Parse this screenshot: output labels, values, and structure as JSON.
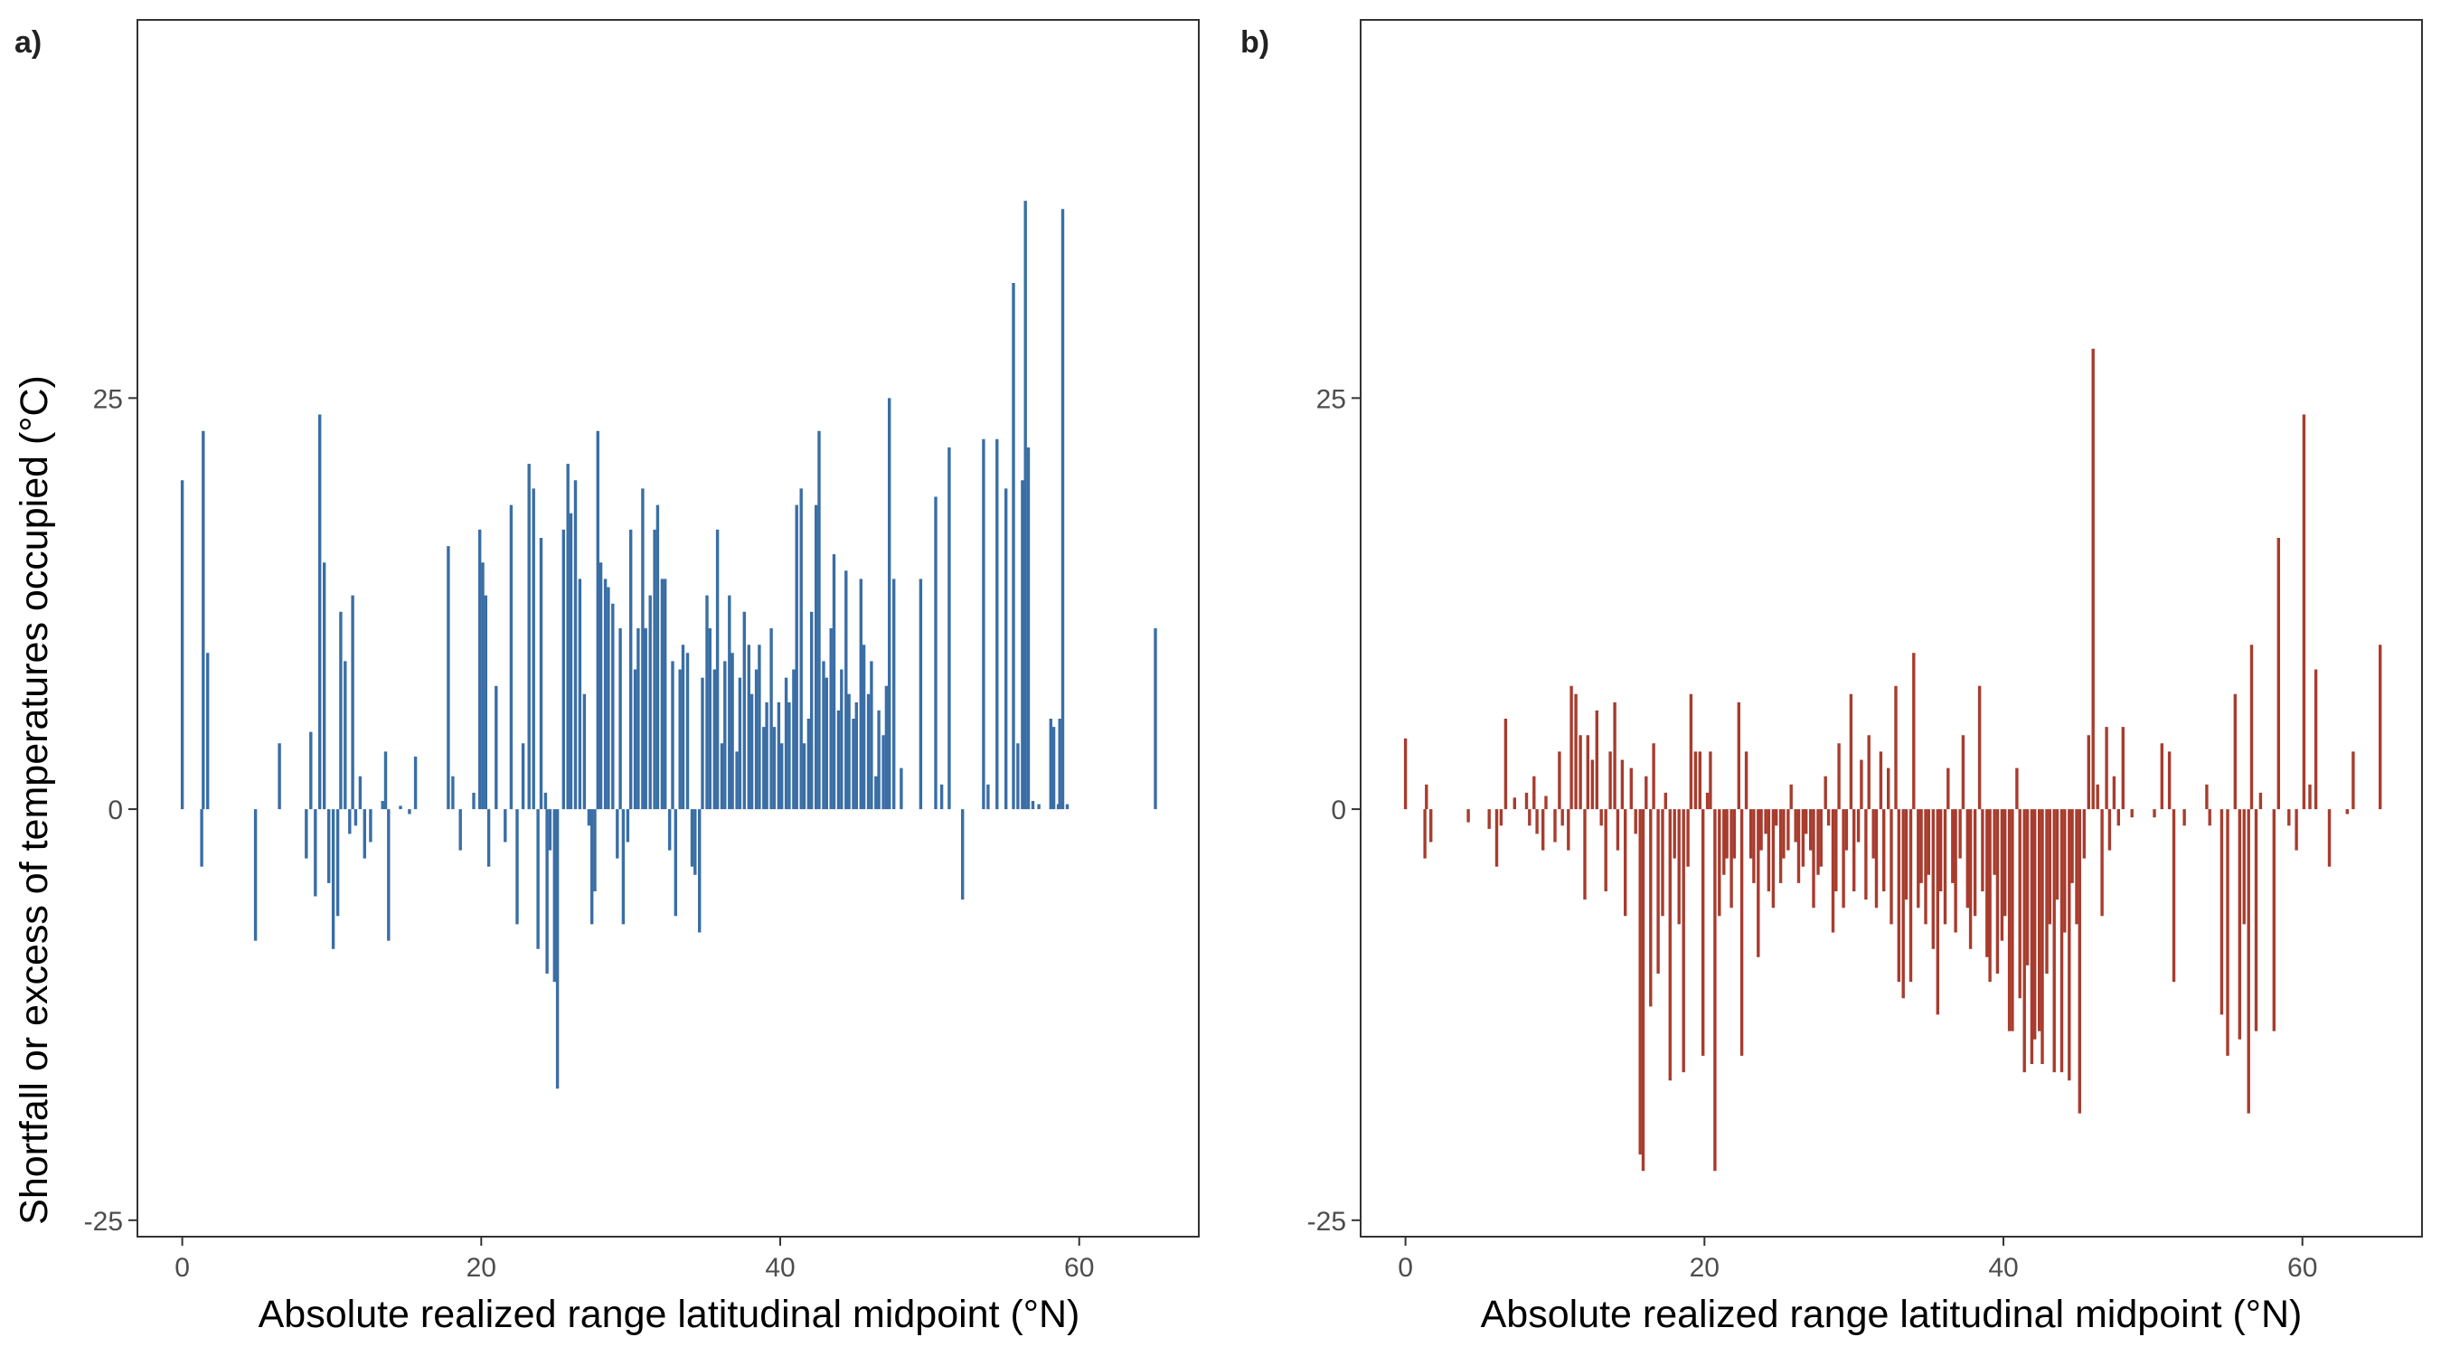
{
  "chart_data": [
    {
      "type": "bar",
      "panel_label": "a)",
      "xlabel": "Absolute realized range latitudinal midpoint (°N)",
      "ylabel": "Shortfall or excess of temperatures occupied (°C)",
      "xlim": [
        -3,
        68
      ],
      "ylim": [
        -26,
        48
      ],
      "xticks": [
        0,
        20,
        40,
        60
      ],
      "yticks": [
        -25,
        0,
        25
      ],
      "color": "#3a6ea5",
      "grid": false,
      "points": [
        [
          0.0,
          20.0
        ],
        [
          1.3,
          -3.5
        ],
        [
          1.4,
          23.0
        ],
        [
          1.7,
          9.5
        ],
        [
          4.9,
          -8.0
        ],
        [
          6.5,
          4.0
        ],
        [
          8.3,
          -3.0
        ],
        [
          8.6,
          4.7
        ],
        [
          8.9,
          -5.3
        ],
        [
          9.2,
          24.0
        ],
        [
          9.5,
          15.0
        ],
        [
          9.8,
          -4.5
        ],
        [
          10.1,
          -8.5
        ],
        [
          10.4,
          -6.5
        ],
        [
          10.6,
          12.0
        ],
        [
          10.9,
          9.0
        ],
        [
          11.2,
          -1.5
        ],
        [
          11.4,
          13.0
        ],
        [
          11.6,
          -1.0
        ],
        [
          11.9,
          2.0
        ],
        [
          12.2,
          -3.0
        ],
        [
          12.6,
          -2.0
        ],
        [
          13.4,
          0.5
        ],
        [
          13.6,
          3.5
        ],
        [
          13.8,
          -8.0
        ],
        [
          14.6,
          0.2
        ],
        [
          15.2,
          -0.3
        ],
        [
          15.6,
          3.2
        ],
        [
          17.8,
          16.0
        ],
        [
          18.1,
          2.0
        ],
        [
          18.6,
          -2.5
        ],
        [
          19.5,
          1.0
        ],
        [
          19.9,
          17.0
        ],
        [
          20.1,
          15.0
        ],
        [
          20.3,
          13.0
        ],
        [
          20.5,
          -3.5
        ],
        [
          21.0,
          7.5
        ],
        [
          21.6,
          -2.0
        ],
        [
          22.0,
          18.5
        ],
        [
          22.4,
          -7.0
        ],
        [
          22.8,
          4.0
        ],
        [
          23.2,
          21.0
        ],
        [
          23.5,
          19.5
        ],
        [
          23.8,
          -8.5
        ],
        [
          24.0,
          16.5
        ],
        [
          24.3,
          1.0
        ],
        [
          24.4,
          -10.0
        ],
        [
          24.6,
          -2.5
        ],
        [
          24.9,
          -10.5
        ],
        [
          25.1,
          -17.0
        ],
        [
          25.5,
          17.0
        ],
        [
          25.8,
          21.0
        ],
        [
          26.0,
          18.0
        ],
        [
          26.3,
          20.0
        ],
        [
          26.6,
          14.0
        ],
        [
          26.9,
          7.0
        ],
        [
          27.2,
          -1.0
        ],
        [
          27.4,
          -7.0
        ],
        [
          27.6,
          -5.0
        ],
        [
          27.8,
          23.0
        ],
        [
          28.0,
          15.0
        ],
        [
          28.3,
          14.0
        ],
        [
          28.5,
          13.5
        ],
        [
          28.8,
          12.5
        ],
        [
          29.1,
          -3.0
        ],
        [
          29.3,
          11.0
        ],
        [
          29.5,
          -7.0
        ],
        [
          29.8,
          -2.0
        ],
        [
          30.0,
          17.0
        ],
        [
          30.3,
          8.5
        ],
        [
          30.5,
          11.0
        ],
        [
          30.8,
          19.5
        ],
        [
          31.0,
          11.0
        ],
        [
          31.3,
          13.0
        ],
        [
          31.6,
          17.0
        ],
        [
          31.8,
          18.5
        ],
        [
          32.1,
          14.0
        ],
        [
          32.3,
          14.0
        ],
        [
          32.6,
          -2.5
        ],
        [
          32.8,
          9.0
        ],
        [
          33.0,
          -6.5
        ],
        [
          33.3,
          8.5
        ],
        [
          33.5,
          10.0
        ],
        [
          33.8,
          9.5
        ],
        [
          34.1,
          -3.5
        ],
        [
          34.3,
          -4.0
        ],
        [
          34.6,
          -7.5
        ],
        [
          34.8,
          8.0
        ],
        [
          35.1,
          13.0
        ],
        [
          35.3,
          11.0
        ],
        [
          35.6,
          8.5
        ],
        [
          35.8,
          17.0
        ],
        [
          36.1,
          4.0
        ],
        [
          36.3,
          9.0
        ],
        [
          36.6,
          13.0
        ],
        [
          36.8,
          9.5
        ],
        [
          37.1,
          3.5
        ],
        [
          37.3,
          8.0
        ],
        [
          37.6,
          12.0
        ],
        [
          37.9,
          10.0
        ],
        [
          38.1,
          7.0
        ],
        [
          38.4,
          8.5
        ],
        [
          38.6,
          10.0
        ],
        [
          38.9,
          5.0
        ],
        [
          39.1,
          6.5
        ],
        [
          39.4,
          11.0
        ],
        [
          39.6,
          5.0
        ],
        [
          39.9,
          6.5
        ],
        [
          40.1,
          4.0
        ],
        [
          40.4,
          8.0
        ],
        [
          40.6,
          6.5
        ],
        [
          40.9,
          8.5
        ],
        [
          41.1,
          18.5
        ],
        [
          41.4,
          19.5
        ],
        [
          41.6,
          4.0
        ],
        [
          41.9,
          5.5
        ],
        [
          42.1,
          12.0
        ],
        [
          42.4,
          18.5
        ],
        [
          42.6,
          23.0
        ],
        [
          42.9,
          9.0
        ],
        [
          43.1,
          8.0
        ],
        [
          43.4,
          11.0
        ],
        [
          43.6,
          15.5
        ],
        [
          43.9,
          6.0
        ],
        [
          44.1,
          8.5
        ],
        [
          44.4,
          14.5
        ],
        [
          44.6,
          7.0
        ],
        [
          44.9,
          5.5
        ],
        [
          45.1,
          6.5
        ],
        [
          45.4,
          14.0
        ],
        [
          45.6,
          10.0
        ],
        [
          45.9,
          7.0
        ],
        [
          46.1,
          9.0
        ],
        [
          46.4,
          2.0
        ],
        [
          46.6,
          6.0
        ],
        [
          46.9,
          4.5
        ],
        [
          47.1,
          7.5
        ],
        [
          47.3,
          25.0
        ],
        [
          47.6,
          14.0
        ],
        [
          48.1,
          2.5
        ],
        [
          49.4,
          14.0
        ],
        [
          50.4,
          19.0
        ],
        [
          50.8,
          1.5
        ],
        [
          51.3,
          22.0
        ],
        [
          52.2,
          -5.5
        ],
        [
          53.6,
          22.5
        ],
        [
          53.9,
          1.5
        ],
        [
          54.5,
          22.5
        ],
        [
          55.1,
          19.5
        ],
        [
          55.6,
          32.0
        ],
        [
          55.9,
          4.0
        ],
        [
          56.2,
          20.0
        ],
        [
          56.4,
          37.0
        ],
        [
          56.6,
          22.0
        ],
        [
          56.9,
          0.5
        ],
        [
          57.3,
          0.3
        ],
        [
          58.1,
          5.5
        ],
        [
          58.3,
          5.0
        ],
        [
          58.6,
          0.3
        ],
        [
          58.7,
          5.5
        ],
        [
          58.9,
          36.5
        ],
        [
          59.2,
          0.3
        ],
        [
          65.1,
          11.0
        ]
      ]
    },
    {
      "type": "bar",
      "panel_label": "b)",
      "xlabel": "Absolute realized range latitudinal midpoint (°N)",
      "ylabel": "",
      "xlim": [
        -3,
        68
      ],
      "ylim": [
        -26,
        48
      ],
      "xticks": [
        0,
        20,
        40,
        60
      ],
      "yticks": [
        -25,
        0,
        25
      ],
      "color": "#a83c2e",
      "grid": false,
      "points": [
        [
          0.0,
          4.3
        ],
        [
          1.3,
          -3.0
        ],
        [
          1.4,
          1.5
        ],
        [
          1.7,
          -2.0
        ],
        [
          4.2,
          -0.8
        ],
        [
          5.6,
          -1.2
        ],
        [
          6.1,
          -3.5
        ],
        [
          6.4,
          -1.0
        ],
        [
          6.7,
          5.5
        ],
        [
          7.3,
          0.7
        ],
        [
          8.1,
          1.0
        ],
        [
          8.3,
          -1.0
        ],
        [
          8.6,
          2.0
        ],
        [
          8.8,
          -1.5
        ],
        [
          9.2,
          -2.5
        ],
        [
          9.4,
          0.8
        ],
        [
          10.0,
          -2.0
        ],
        [
          10.3,
          3.5
        ],
        [
          10.5,
          -1.0
        ],
        [
          10.9,
          -2.5
        ],
        [
          11.1,
          7.5
        ],
        [
          11.4,
          7.0
        ],
        [
          11.7,
          4.5
        ],
        [
          12.0,
          -5.5
        ],
        [
          12.2,
          4.5
        ],
        [
          12.5,
          3.0
        ],
        [
          12.8,
          6.0
        ],
        [
          13.1,
          -1.0
        ],
        [
          13.4,
          -5.0
        ],
        [
          13.7,
          3.5
        ],
        [
          14.0,
          6.5
        ],
        [
          14.2,
          -2.5
        ],
        [
          14.5,
          3.0
        ],
        [
          14.7,
          -6.5
        ],
        [
          15.1,
          2.5
        ],
        [
          15.4,
          -1.5
        ],
        [
          15.7,
          -21.0
        ],
        [
          15.9,
          -22.0
        ],
        [
          16.1,
          2.0
        ],
        [
          16.4,
          -12.0
        ],
        [
          16.6,
          4.0
        ],
        [
          16.9,
          -10.0
        ],
        [
          17.2,
          -6.5
        ],
        [
          17.4,
          1.0
        ],
        [
          17.7,
          -16.5
        ],
        [
          18.0,
          -3.0
        ],
        [
          18.3,
          -7.0
        ],
        [
          18.6,
          -16.0
        ],
        [
          18.9,
          -3.5
        ],
        [
          19.1,
          7.0
        ],
        [
          19.4,
          3.5
        ],
        [
          19.7,
          3.5
        ],
        [
          19.9,
          -15.0
        ],
        [
          20.2,
          1.0
        ],
        [
          20.4,
          3.5
        ],
        [
          20.7,
          -22.0
        ],
        [
          21.0,
          -6.5
        ],
        [
          21.3,
          -4.0
        ],
        [
          21.5,
          -3.0
        ],
        [
          21.8,
          -6.0
        ],
        [
          22.0,
          -3.0
        ],
        [
          22.3,
          6.5
        ],
        [
          22.5,
          -15.0
        ],
        [
          22.8,
          3.5
        ],
        [
          23.1,
          -3.0
        ],
        [
          23.3,
          -4.5
        ],
        [
          23.6,
          -9.0
        ],
        [
          23.8,
          -2.5
        ],
        [
          24.1,
          -1.5
        ],
        [
          24.3,
          -5.0
        ],
        [
          24.6,
          -6.0
        ],
        [
          24.8,
          -1.0
        ],
        [
          25.1,
          -4.5
        ],
        [
          25.3,
          -3.0
        ],
        [
          25.6,
          -2.5
        ],
        [
          25.8,
          1.5
        ],
        [
          26.1,
          -2.0
        ],
        [
          26.3,
          -4.5
        ],
        [
          26.6,
          -3.5
        ],
        [
          26.8,
          -1.5
        ],
        [
          27.1,
          -2.5
        ],
        [
          27.3,
          -6.0
        ],
        [
          27.6,
          -4.0
        ],
        [
          27.8,
          -3.5
        ],
        [
          28.1,
          2.0
        ],
        [
          28.3,
          -1.0
        ],
        [
          28.6,
          -7.5
        ],
        [
          28.8,
          -5.0
        ],
        [
          29.0,
          4.0
        ],
        [
          29.3,
          -6.0
        ],
        [
          29.5,
          -2.5
        ],
        [
          29.8,
          7.0
        ],
        [
          30.0,
          -5.0
        ],
        [
          30.3,
          -2.0
        ],
        [
          30.5,
          3.0
        ],
        [
          30.8,
          -5.5
        ],
        [
          31.0,
          4.5
        ],
        [
          31.3,
          -3.0
        ],
        [
          31.5,
          -6.0
        ],
        [
          31.8,
          3.5
        ],
        [
          32.0,
          -5.0
        ],
        [
          32.3,
          2.5
        ],
        [
          32.5,
          -7.0
        ],
        [
          32.8,
          7.5
        ],
        [
          33.0,
          -10.5
        ],
        [
          33.3,
          -11.5
        ],
        [
          33.5,
          -5.5
        ],
        [
          33.8,
          -10.5
        ],
        [
          34.0,
          9.5
        ],
        [
          34.3,
          -6.0
        ],
        [
          34.5,
          -4.5
        ],
        [
          34.8,
          -7.0
        ],
        [
          35.0,
          -4.0
        ],
        [
          35.3,
          -8.5
        ],
        [
          35.6,
          -12.5
        ],
        [
          35.8,
          -5.0
        ],
        [
          36.1,
          -7.0
        ],
        [
          36.3,
          2.5
        ],
        [
          36.6,
          -4.5
        ],
        [
          36.8,
          -7.5
        ],
        [
          37.1,
          -3.0
        ],
        [
          37.3,
          4.5
        ],
        [
          37.6,
          -6.0
        ],
        [
          37.8,
          -8.5
        ],
        [
          38.1,
          -6.5
        ],
        [
          38.4,
          7.5
        ],
        [
          38.6,
          -5.0
        ],
        [
          38.9,
          -9.0
        ],
        [
          39.1,
          -10.5
        ],
        [
          39.4,
          -4.0
        ],
        [
          39.6,
          -10.0
        ],
        [
          39.9,
          -8.0
        ],
        [
          40.1,
          -6.5
        ],
        [
          40.4,
          -13.5
        ],
        [
          40.6,
          -13.5
        ],
        [
          40.9,
          2.5
        ],
        [
          41.1,
          -11.5
        ],
        [
          41.4,
          -16.0
        ],
        [
          41.6,
          -9.5
        ],
        [
          41.9,
          -15.5
        ],
        [
          42.1,
          -14.0
        ],
        [
          42.4,
          -13.5
        ],
        [
          42.6,
          -15.5
        ],
        [
          42.9,
          -10.0
        ],
        [
          43.1,
          -7.0
        ],
        [
          43.4,
          -16.0
        ],
        [
          43.6,
          -5.5
        ],
        [
          43.9,
          -16.0
        ],
        [
          44.1,
          -7.5
        ],
        [
          44.4,
          -16.5
        ],
        [
          44.6,
          -4.5
        ],
        [
          44.9,
          -7.0
        ],
        [
          45.1,
          -18.5
        ],
        [
          45.4,
          -3.0
        ],
        [
          45.7,
          4.5
        ],
        [
          46.0,
          28.0
        ],
        [
          46.3,
          1.5
        ],
        [
          46.6,
          -6.5
        ],
        [
          46.9,
          5.0
        ],
        [
          47.1,
          -2.5
        ],
        [
          47.4,
          2.0
        ],
        [
          47.7,
          -1.0
        ],
        [
          48.0,
          5.0
        ],
        [
          48.6,
          -0.5
        ],
        [
          50.1,
          -0.5
        ],
        [
          50.6,
          4.0
        ],
        [
          51.1,
          3.5
        ],
        [
          51.4,
          -10.5
        ],
        [
          52.1,
          -1.0
        ],
        [
          53.6,
          1.5
        ],
        [
          53.8,
          -1.0
        ],
        [
          54.6,
          -12.5
        ],
        [
          55.0,
          -15.0
        ],
        [
          55.5,
          7.0
        ],
        [
          55.8,
          -14.0
        ],
        [
          56.1,
          -7.0
        ],
        [
          56.4,
          -18.5
        ],
        [
          56.6,
          10.0
        ],
        [
          56.9,
          -13.5
        ],
        [
          57.2,
          1.0
        ],
        [
          58.1,
          -13.5
        ],
        [
          58.4,
          16.5
        ],
        [
          59.1,
          -1.0
        ],
        [
          59.6,
          -2.5
        ],
        [
          60.1,
          24.0
        ],
        [
          60.5,
          1.5
        ],
        [
          60.9,
          8.5
        ],
        [
          61.8,
          -3.5
        ],
        [
          63.0,
          -0.3
        ],
        [
          63.4,
          3.5
        ],
        [
          65.2,
          10.0
        ]
      ]
    }
  ]
}
